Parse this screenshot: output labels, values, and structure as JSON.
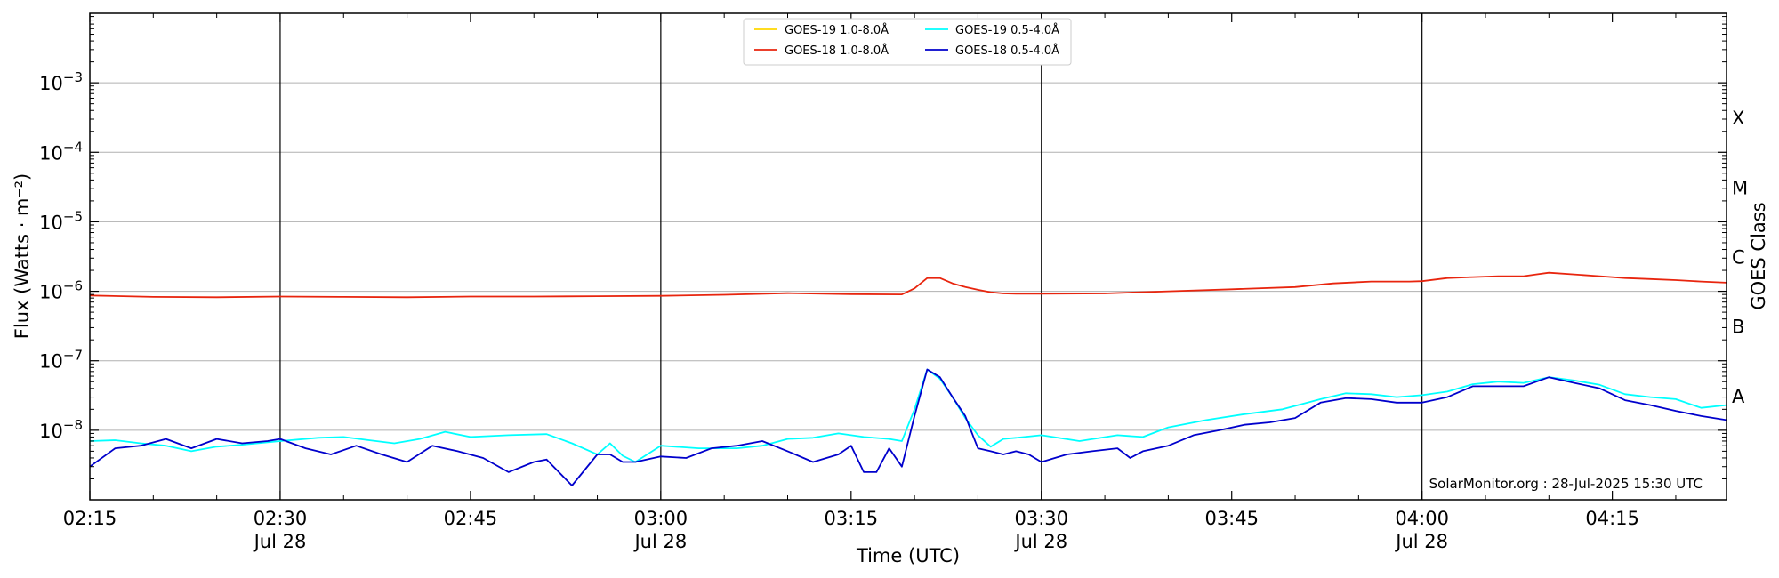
{
  "chart_data": {
    "type": "line",
    "title": "",
    "xlabel": "Time (UTC)",
    "ylabel": "Flux (Watts · m⁻²)",
    "ylabel_right": "GOES Class",
    "y_scale": "log",
    "ylim": [
      "1e-9",
      "1e-2"
    ],
    "xlim": [
      "2025-07-28 02:15",
      "2025-07-28 04:24"
    ],
    "grid": "horizontal",
    "legend_position": "top-center",
    "x_ticks": [
      {
        "t": "2025-07-28 02:15",
        "label": "02:15",
        "sublabel": ""
      },
      {
        "t": "2025-07-28 02:30",
        "label": "02:30",
        "sublabel": "Jul 28"
      },
      {
        "t": "2025-07-28 02:45",
        "label": "02:45",
        "sublabel": ""
      },
      {
        "t": "2025-07-28 03:00",
        "label": "03:00",
        "sublabel": "Jul 28"
      },
      {
        "t": "2025-07-28 03:15",
        "label": "03:15",
        "sublabel": ""
      },
      {
        "t": "2025-07-28 03:30",
        "label": "03:30",
        "sublabel": "Jul 28"
      },
      {
        "t": "2025-07-28 03:45",
        "label": "03:45",
        "sublabel": ""
      },
      {
        "t": "2025-07-28 04:00",
        "label": "04:00",
        "sublabel": "Jul 28"
      },
      {
        "t": "2025-07-28 04:15",
        "label": "04:15",
        "sublabel": ""
      }
    ],
    "vertical_lines": [
      "2025-07-28 02:30",
      "2025-07-28 03:00",
      "2025-07-28 03:30",
      "2025-07-28 04:00"
    ],
    "y_ticks": [
      {
        "value": "1e-8",
        "base": "10",
        "exp": "−8"
      },
      {
        "value": "1e-7",
        "base": "10",
        "exp": "−7"
      },
      {
        "value": "1e-6",
        "base": "10",
        "exp": "−6"
      },
      {
        "value": "1e-5",
        "base": "10",
        "exp": "−5"
      },
      {
        "value": "1e-4",
        "base": "10",
        "exp": "−4"
      },
      {
        "value": "1e-3",
        "base": "10",
        "exp": "−3"
      }
    ],
    "goes_classes": [
      {
        "label": "A",
        "value": "3.16e-8"
      },
      {
        "label": "B",
        "value": "3.16e-7"
      },
      {
        "label": "C",
        "value": "3.16e-6"
      },
      {
        "label": "M",
        "value": "3.16e-5"
      },
      {
        "label": "X",
        "value": "3.16e-4"
      }
    ],
    "series": [
      {
        "name": "GOES-19 1.0-8.0Å",
        "color": "#ffd700",
        "x": [],
        "y": []
      },
      {
        "name": "GOES-18 1.0-8.0Å",
        "color": "#e8250e",
        "x": [
          "02:15",
          "02:20",
          "02:25",
          "02:30",
          "02:35",
          "02:40",
          "02:45",
          "02:50",
          "02:55",
          "03:00",
          "03:05",
          "03:10",
          "03:15",
          "03:19",
          "03:20",
          "03:21",
          "03:22",
          "03:23",
          "03:24",
          "03:25",
          "03:26",
          "03:27",
          "03:28",
          "03:30",
          "03:35",
          "03:40",
          "03:45",
          "03:50",
          "03:53",
          "03:56",
          "03:59",
          "04:00",
          "04:02",
          "04:04",
          "04:06",
          "04:08",
          "04:09",
          "04:10",
          "04:12",
          "04:14",
          "04:16",
          "04:18",
          "04:20",
          "04:22",
          "04:24"
        ],
        "y": [
          "8.7e-7",
          "8.3e-7",
          "8.2e-7",
          "8.4e-7",
          "8.3e-7",
          "8.2e-7",
          "8.4e-7",
          "8.4e-7",
          "8.5e-7",
          "8.6e-7",
          "8.9e-7",
          "9.4e-7",
          "9.1e-7",
          "9.0e-7",
          "1.1e-6",
          "1.55e-6",
          "1.55e-6",
          "1.3e-6",
          "1.15e-6",
          "1.05e-6",
          "9.7e-7",
          "9.3e-7",
          "9.2e-7",
          "9.2e-7",
          "9.3e-7",
          "1.0e-6",
          "1.07e-6",
          "1.15e-6",
          "1.3e-6",
          "1.38e-6",
          "1.38e-6",
          "1.4e-6",
          "1.55e-6",
          "1.6e-6",
          "1.65e-6",
          "1.65e-6",
          "1.75e-6",
          "1.85e-6",
          "1.75e-6",
          "1.65e-6",
          "1.55e-6",
          "1.5e-6",
          "1.45e-6",
          "1.38e-6",
          "1.33e-6"
        ]
      },
      {
        "name": "GOES-19 0.5-4.0Å",
        "color": "#00ffff",
        "x": [
          "02:15",
          "02:17",
          "02:19",
          "02:21",
          "02:23",
          "02:25",
          "02:27",
          "02:30",
          "02:33",
          "02:35",
          "02:37",
          "02:39",
          "02:41",
          "02:43",
          "02:45",
          "02:48",
          "02:51",
          "02:53",
          "02:55",
          "02:56",
          "02:57",
          "02:58",
          "03:00",
          "03:03",
          "03:06",
          "03:08",
          "03:10",
          "03:12",
          "03:14",
          "03:16",
          "03:18",
          "03:19",
          "03:20",
          "03:21",
          "03:22",
          "03:23",
          "03:24",
          "03:25",
          "03:26",
          "03:27",
          "03:28",
          "03:30",
          "03:33",
          "03:36",
          "03:38",
          "03:40",
          "03:43",
          "03:46",
          "03:49",
          "03:52",
          "03:54",
          "03:56",
          "03:58",
          "04:00",
          "04:02",
          "04:04",
          "04:06",
          "04:08",
          "04:10",
          "04:12",
          "04:14",
          "04:16",
          "04:18",
          "04:20",
          "04:22",
          "04:24"
        ],
        "y": [
          "7.0e-9",
          "7.2e-9",
          "6.5e-9",
          "6.0e-9",
          "5.0e-9",
          "5.8e-9",
          "6.2e-9",
          "7.0e-9",
          "7.8e-9",
          "8.0e-9",
          "7.2e-9",
          "6.5e-9",
          "7.5e-9",
          "9.5e-9",
          "8.0e-9",
          "8.5e-9",
          "8.8e-9",
          "6.5e-9",
          "4.5e-9",
          "6.5e-9",
          "4.3e-9",
          "3.5e-9",
          "6.0e-9",
          "5.5e-9",
          "5.5e-9",
          "6.0e-9",
          "7.5e-9",
          "7.8e-9",
          "9.0e-9",
          "8.0e-9",
          "7.5e-9",
          "7.0e-9",
          "2.0e-8",
          "7.5e-8",
          "5.5e-8",
          "3.0e-8",
          "1.5e-8",
          "8.5e-9",
          "5.8e-9",
          "7.5e-9",
          "7.8e-9",
          "8.5e-9",
          "7.0e-9",
          "8.5e-9",
          "8.0e-9",
          "1.1e-8",
          "1.4e-8",
          "1.7e-8",
          "2.0e-8",
          "2.8e-8",
          "3.4e-8",
          "3.3e-8",
          "3.0e-8",
          "3.2e-8",
          "3.6e-8",
          "4.6e-8",
          "5.0e-8",
          "4.8e-8",
          "5.8e-8",
          "5.2e-8",
          "4.5e-8",
          "3.3e-8",
          "3.0e-8",
          "2.8e-8",
          "2.1e-8",
          "2.3e-8"
        ]
      },
      {
        "name": "GOES-18 0.5-4.0Å",
        "color": "#0000cc",
        "x": [
          "02:15",
          "02:17",
          "02:19",
          "02:21",
          "02:23",
          "02:25",
          "02:27",
          "02:29",
          "02:30",
          "02:32",
          "02:34",
          "02:36",
          "02:38",
          "02:40",
          "02:42",
          "02:44",
          "02:46",
          "02:48",
          "02:50",
          "02:51",
          "02:53",
          "02:55",
          "02:56",
          "02:57",
          "02:58",
          "03:00",
          "03:02",
          "03:04",
          "03:06",
          "03:08",
          "03:10",
          "03:12",
          "03:14",
          "03:15",
          "03:16",
          "03:17",
          "03:18",
          "03:19",
          "03:20",
          "03:21",
          "03:22",
          "03:23",
          "03:24",
          "03:25",
          "03:26",
          "03:27",
          "03:28",
          "03:29",
          "03:30",
          "03:32",
          "03:34",
          "03:36",
          "03:37",
          "03:38",
          "03:40",
          "03:42",
          "03:44",
          "03:46",
          "03:48",
          "03:50",
          "03:52",
          "03:54",
          "03:56",
          "03:58",
          "04:00",
          "04:02",
          "04:04",
          "04:06",
          "04:08",
          "04:10",
          "04:12",
          "04:14",
          "04:16",
          "04:18",
          "04:20",
          "04:22",
          "04:24"
        ],
        "y": [
          "3.0e-9",
          "5.5e-9",
          "6.0e-9",
          "7.5e-9",
          "5.5e-9",
          "7.5e-9",
          "6.5e-9",
          "7.0e-9",
          "7.5e-9",
          "5.5e-9",
          "4.5e-9",
          "6.0e-9",
          "4.5e-9",
          "3.5e-9",
          "6.0e-9",
          "5.0e-9",
          "4.0e-9",
          "2.5e-9",
          "3.5e-9",
          "3.8e-9",
          "1.6e-9",
          "4.5e-9",
          "4.5e-9",
          "3.5e-9",
          "3.5e-9",
          "4.2e-9",
          "4.0e-9",
          "5.5e-9",
          "6.0e-9",
          "7.0e-9",
          "5.0e-9",
          "3.5e-9",
          "4.5e-9",
          "6.0e-9",
          "2.5e-9",
          "2.5e-9",
          "5.5e-9",
          "3.0e-9",
          "1.6e-8",
          "7.5e-8",
          "5.8e-8",
          "3.0e-8",
          "1.6e-8",
          "5.5e-9",
          "5.0e-9",
          "4.5e-9",
          "5.0e-9",
          "4.5e-9",
          "3.5e-9",
          "4.5e-9",
          "5.0e-9",
          "5.5e-9",
          "4.0e-9",
          "5.0e-9",
          "6.0e-9",
          "8.5e-9",
          "1.0e-8",
          "1.2e-8",
          "1.3e-8",
          "1.5e-8",
          "2.5e-8",
          "2.9e-8",
          "2.8e-8",
          "2.5e-8",
          "2.5e-8",
          "3.0e-8",
          "4.3e-8",
          "4.3e-8",
          "4.3e-8",
          "5.8e-8",
          "4.8e-8",
          "4.0e-8",
          "2.7e-8",
          "2.3e-8",
          "1.9e-8",
          "1.6e-8",
          "1.4e-8"
        ]
      }
    ],
    "credit": "SolarMonitor.org : 28-Jul-2025 15:30 UTC"
  }
}
